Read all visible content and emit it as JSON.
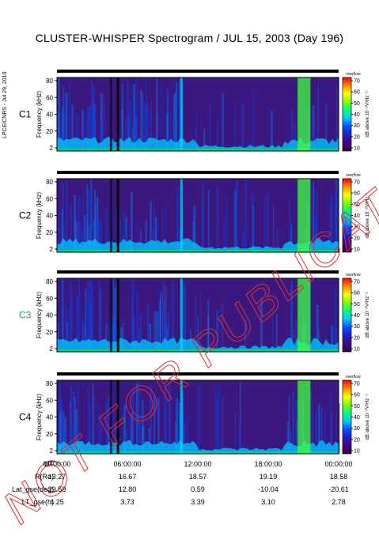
{
  "title": "CLUSTER-WHISPER Spectrogram / JUL 15, 2003 (Day 196)",
  "side_label": "LPCE/CNRS - Jul 29, 2010",
  "watermark": "NOT FOR PUBLICATION",
  "chart_data": {
    "type": "heatmap",
    "panels": [
      {
        "name": "C1",
        "color": "#000000"
      },
      {
        "name": "C2",
        "color": "#000000"
      },
      {
        "name": "C3",
        "color": "#17a34a"
      },
      {
        "name": "C4",
        "color": "#000000"
      }
    ],
    "ylabel": "Frequency (kHz)",
    "yticks": [
      "80",
      "60",
      "40",
      "20",
      "2"
    ],
    "ylim": [
      2,
      80
    ],
    "colorbar_label": "dB above 10⁻⁸V²Hz⁻¹",
    "colorbar_ticks": [
      "70",
      "60",
      "50",
      "40",
      "30",
      "20",
      "10"
    ],
    "colorbar_top_label": "overflow",
    "colorbar_range": [
      10,
      70
    ],
    "colormap": [
      "#2d0040",
      "#4b0082",
      "#2020c0",
      "#0050ff",
      "#00c8ff",
      "#00ff80",
      "#80ff00",
      "#ffff00",
      "#ff9000",
      "#ff0000"
    ],
    "x_hours": [
      0,
      24
    ],
    "events": [
      {
        "start_h": 4.5,
        "end_h": 4.7,
        "level": "low"
      },
      {
        "start_h": 10.5,
        "end_h": 10.7,
        "level": "high"
      },
      {
        "start_h": 20.5,
        "end_h": 21.6,
        "level": "very-high"
      }
    ],
    "footer": {
      "row_labels": [
        "UT",
        "R(Re)",
        "Lat_gse(deg)",
        "LT_gse(h)"
      ],
      "columns": [
        [
          "00:00:00",
          "13.27",
          "29.59",
          "4.25"
        ],
        [
          "06:00:00",
          "16.67",
          "12.80",
          "3.73"
        ],
        [
          "12:00:00",
          "18.57",
          "0.59",
          "3.39"
        ],
        [
          "18:00:00",
          "19.19",
          "-10.04",
          "3.10"
        ],
        [
          "00:00:00",
          "18.58",
          "-20.61",
          "2.78"
        ]
      ]
    }
  }
}
